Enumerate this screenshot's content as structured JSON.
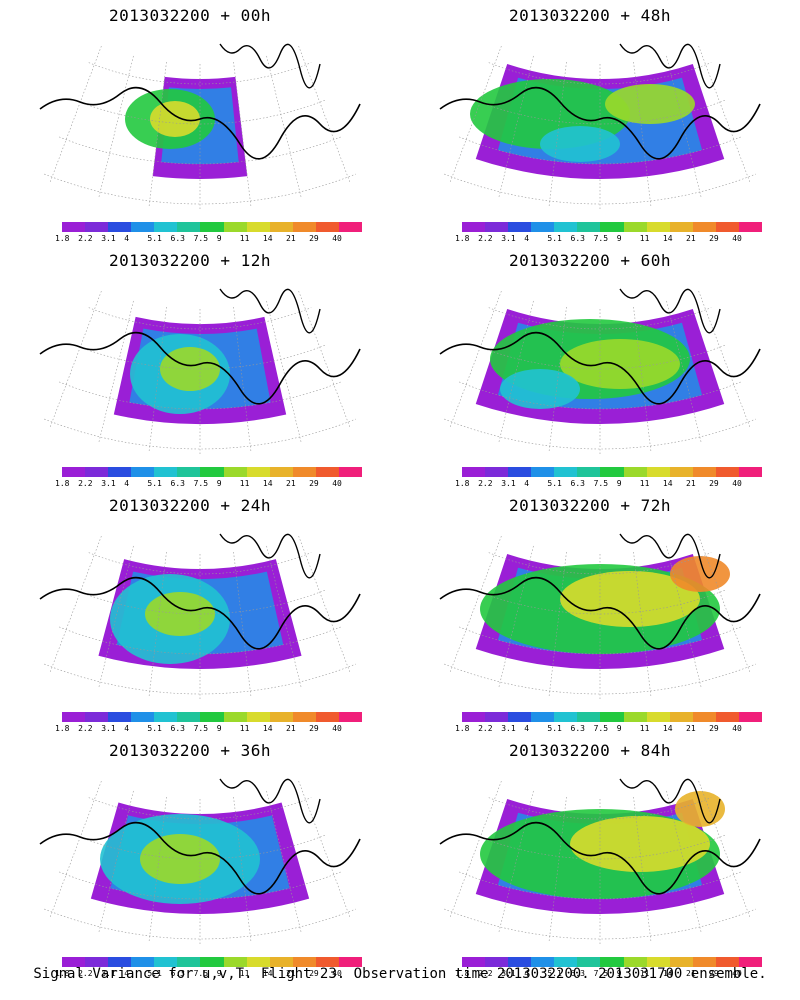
{
  "panels": [
    {
      "title": "2013032200 + 00h"
    },
    {
      "title": "2013032200 + 48h"
    },
    {
      "title": "2013032200 + 12h"
    },
    {
      "title": "2013032200 + 60h"
    },
    {
      "title": "2013032200 + 24h"
    },
    {
      "title": "2013032200 + 72h"
    },
    {
      "title": "2013032200 + 36h"
    },
    {
      "title": "2013032200 + 84h"
    }
  ],
  "colorbar": {
    "colors": [
      "#9a1fd6",
      "#7c2bd9",
      "#2a4de0",
      "#1f90e8",
      "#21c2d2",
      "#1fc49a",
      "#22c93f",
      "#9bd92a",
      "#d8db2c",
      "#e8b22a",
      "#f08a2a",
      "#f05a2e",
      "#f01f7a"
    ],
    "labels": [
      "1.8",
      "2.2",
      "3.1",
      "4",
      "5.1",
      "6.3",
      "7.5",
      "9",
      "11",
      "14",
      "21",
      "29",
      "40"
    ]
  },
  "footer": "Signal Variance for u,v,T. Flight 23. Observation time 2013032200. 2013031700 ensemble."
}
